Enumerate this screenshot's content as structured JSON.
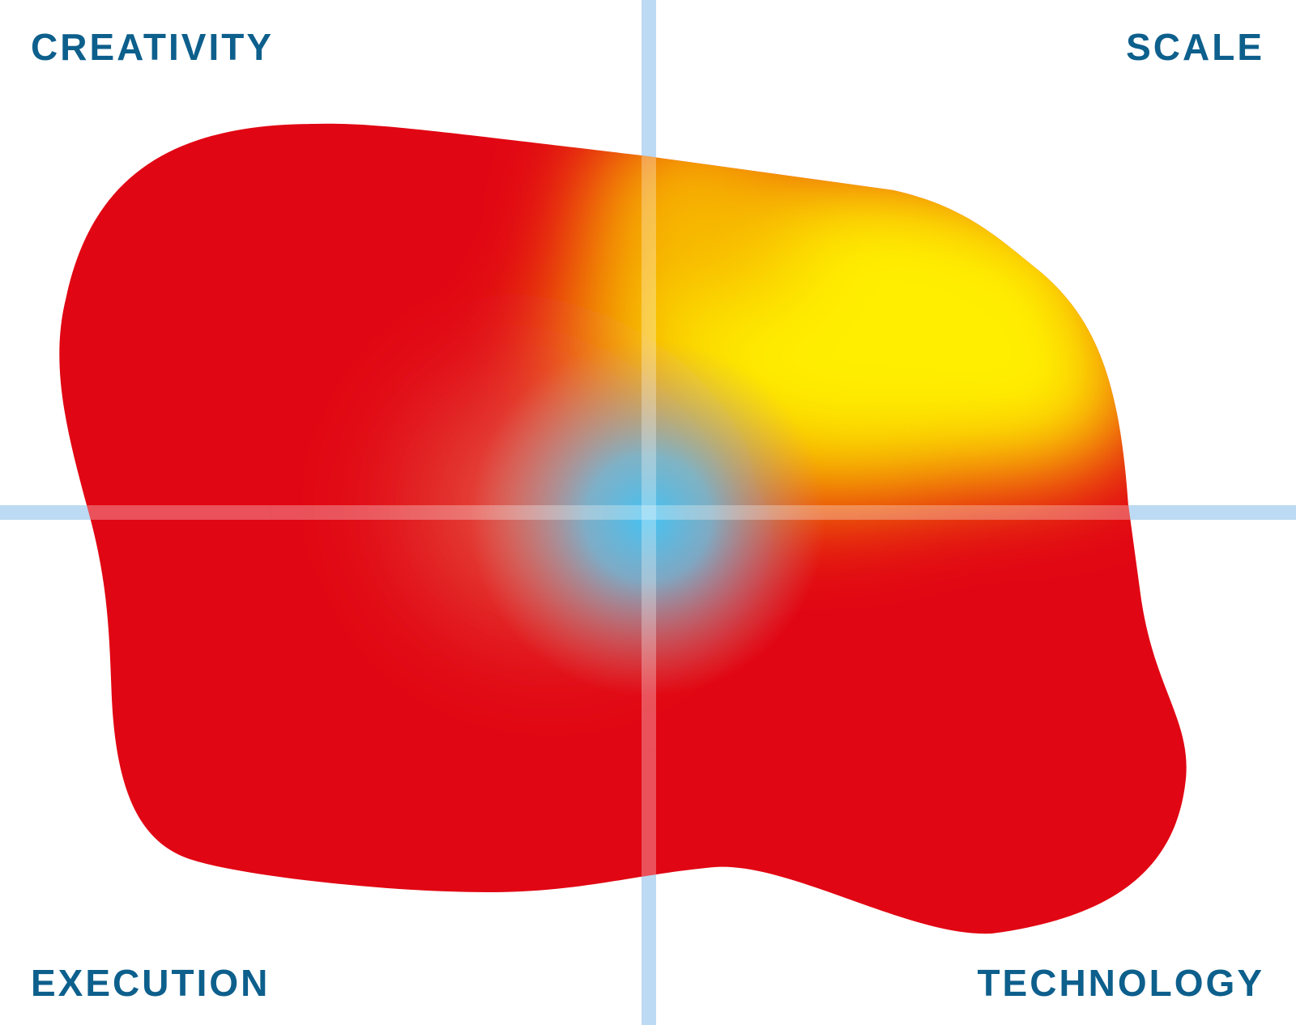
{
  "quadrants": {
    "top_left": "CREATIVITY",
    "top_right": "SCALE",
    "bottom_left": "EXECUTION",
    "bottom_right": "TECHNOLOGY"
  }
}
